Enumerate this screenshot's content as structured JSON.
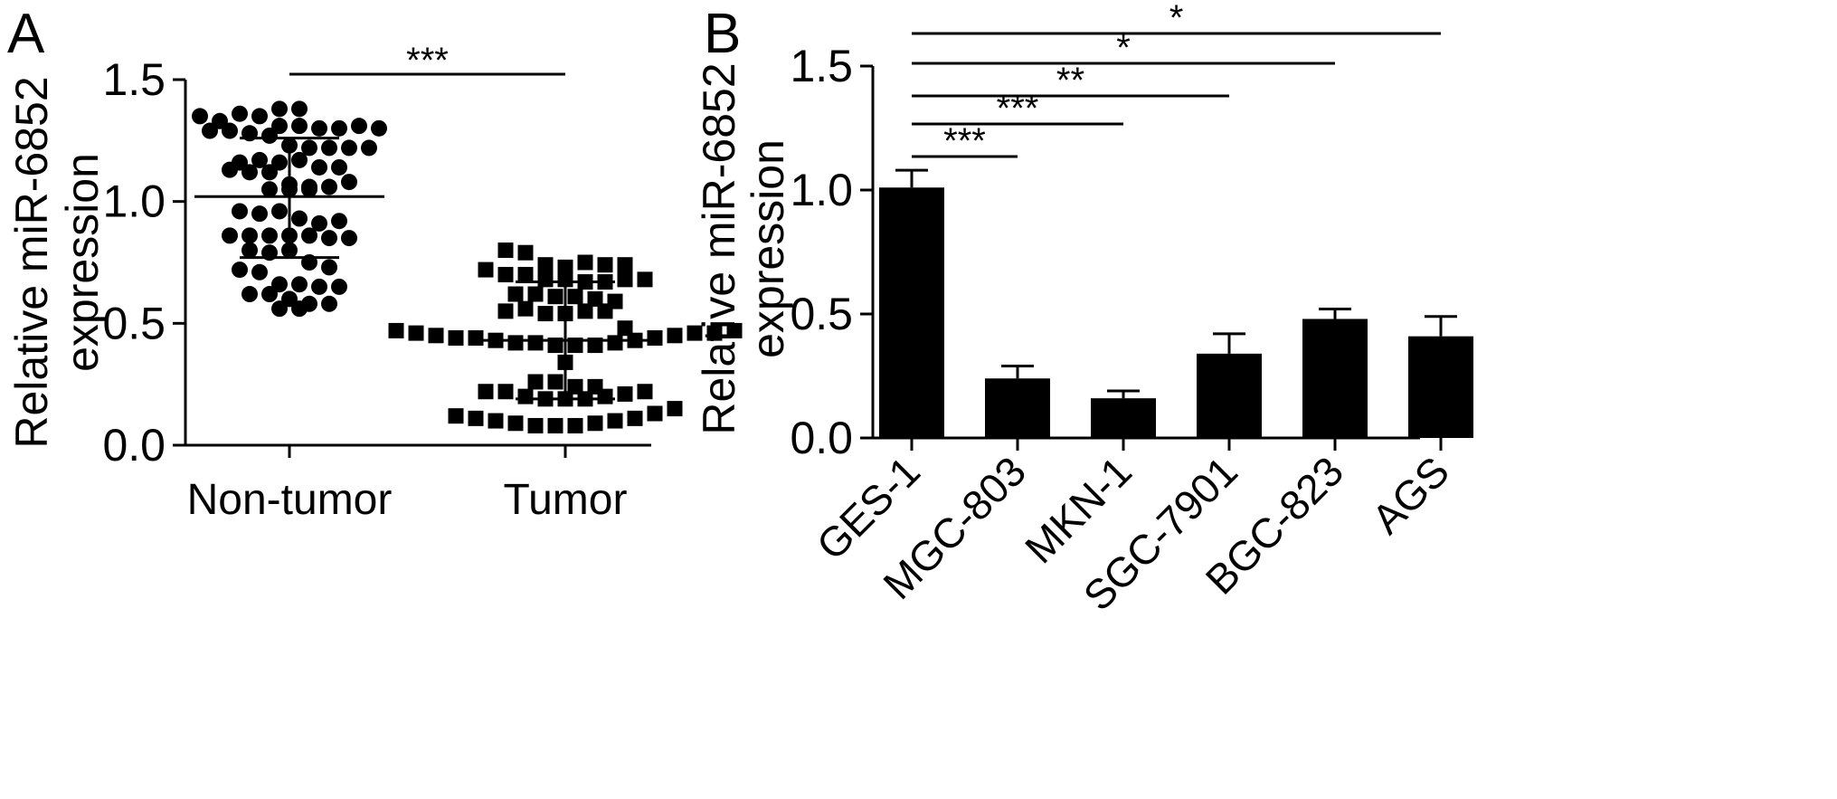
{
  "panels": {
    "a_label": "A",
    "b_label": "B"
  },
  "chart_data": [
    {
      "panel": "A",
      "type": "scatter",
      "ylabel": "Relative miR-6852 expression",
      "ylim": [
        0,
        1.5
      ],
      "yticks": [
        "0.0",
        "0.5",
        "1.0",
        "1.5"
      ],
      "categories": [
        "Non-tumor",
        "Tumor"
      ],
      "series": [
        {
          "category": "Non-tumor",
          "marker": "circle",
          "mean": 1.02,
          "sd_low": 0.77,
          "sd_high": 1.26,
          "values": [
            1.35,
            1.33,
            1.38,
            1.38,
            1.36,
            1.35,
            1.31,
            1.31,
            1.3,
            1.3,
            1.29,
            1.29,
            1.31,
            1.3,
            1.28,
            1.27,
            1.23,
            1.22,
            1.22,
            1.22,
            1.22,
            1.16,
            1.17,
            1.16,
            1.17,
            1.14,
            1.13,
            1.12,
            1.14,
            1.12,
            1.07,
            1.05,
            1.06,
            1.06,
            1.05,
            1.08,
            1.05,
            0.96,
            0.95,
            0.96,
            0.93,
            0.91,
            0.92,
            0.86,
            0.86,
            0.86,
            0.86,
            0.86,
            0.85,
            0.85,
            0.8,
            0.79,
            0.8,
            0.75,
            0.73,
            0.72,
            0.71,
            0.66,
            0.66,
            0.65,
            0.65,
            0.62,
            0.62,
            0.6,
            0.58,
            0.58,
            0.56,
            0.56
          ]
        },
        {
          "category": "Tumor",
          "marker": "square",
          "mean": 0.43,
          "sd_low": 0.19,
          "sd_high": 0.67,
          "values": [
            0.8,
            0.79,
            0.74,
            0.73,
            0.72,
            0.75,
            0.74,
            0.74,
            0.7,
            0.7,
            0.68,
            0.68,
            0.67,
            0.67,
            0.68,
            0.68,
            0.62,
            0.62,
            0.61,
            0.61,
            0.6,
            0.59,
            0.55,
            0.56,
            0.54,
            0.54,
            0.55,
            0.55,
            0.48,
            0.47,
            0.46,
            0.45,
            0.44,
            0.44,
            0.43,
            0.42,
            0.42,
            0.41,
            0.41,
            0.41,
            0.42,
            0.43,
            0.44,
            0.45,
            0.46,
            0.46,
            0.47,
            0.34,
            0.26,
            0.26,
            0.24,
            0.22,
            0.22,
            0.2,
            0.19,
            0.19,
            0.19,
            0.2,
            0.21,
            0.22,
            0.24,
            0.12,
            0.11,
            0.1,
            0.09,
            0.08,
            0.08,
            0.08,
            0.09,
            0.1,
            0.11,
            0.13,
            0.15
          ]
        }
      ],
      "significance": [
        {
          "from": "Non-tumor",
          "to": "Tumor",
          "label": "***"
        }
      ]
    },
    {
      "panel": "B",
      "type": "bar",
      "ylabel": "Relative miR-6852 expression",
      "ylim": [
        0,
        1.5
      ],
      "yticks": [
        "0.0",
        "0.5",
        "1.0",
        "1.5"
      ],
      "categories": [
        "GES-1",
        "MGC-803",
        "MKN-1",
        "SGC-7901",
        "BGC-823",
        "AGS"
      ],
      "values": [
        1.01,
        0.24,
        0.16,
        0.34,
        0.48,
        0.41
      ],
      "errors": [
        0.07,
        0.05,
        0.03,
        0.08,
        0.04,
        0.08
      ],
      "significance": [
        {
          "from": "GES-1",
          "to": "MGC-803",
          "label": "***"
        },
        {
          "from": "GES-1",
          "to": "MKN-1",
          "label": "***"
        },
        {
          "from": "GES-1",
          "to": "SGC-7901",
          "label": "**"
        },
        {
          "from": "GES-1",
          "to": "BGC-823",
          "label": "*"
        },
        {
          "from": "GES-1",
          "to": "AGS",
          "label": "*"
        }
      ]
    }
  ]
}
